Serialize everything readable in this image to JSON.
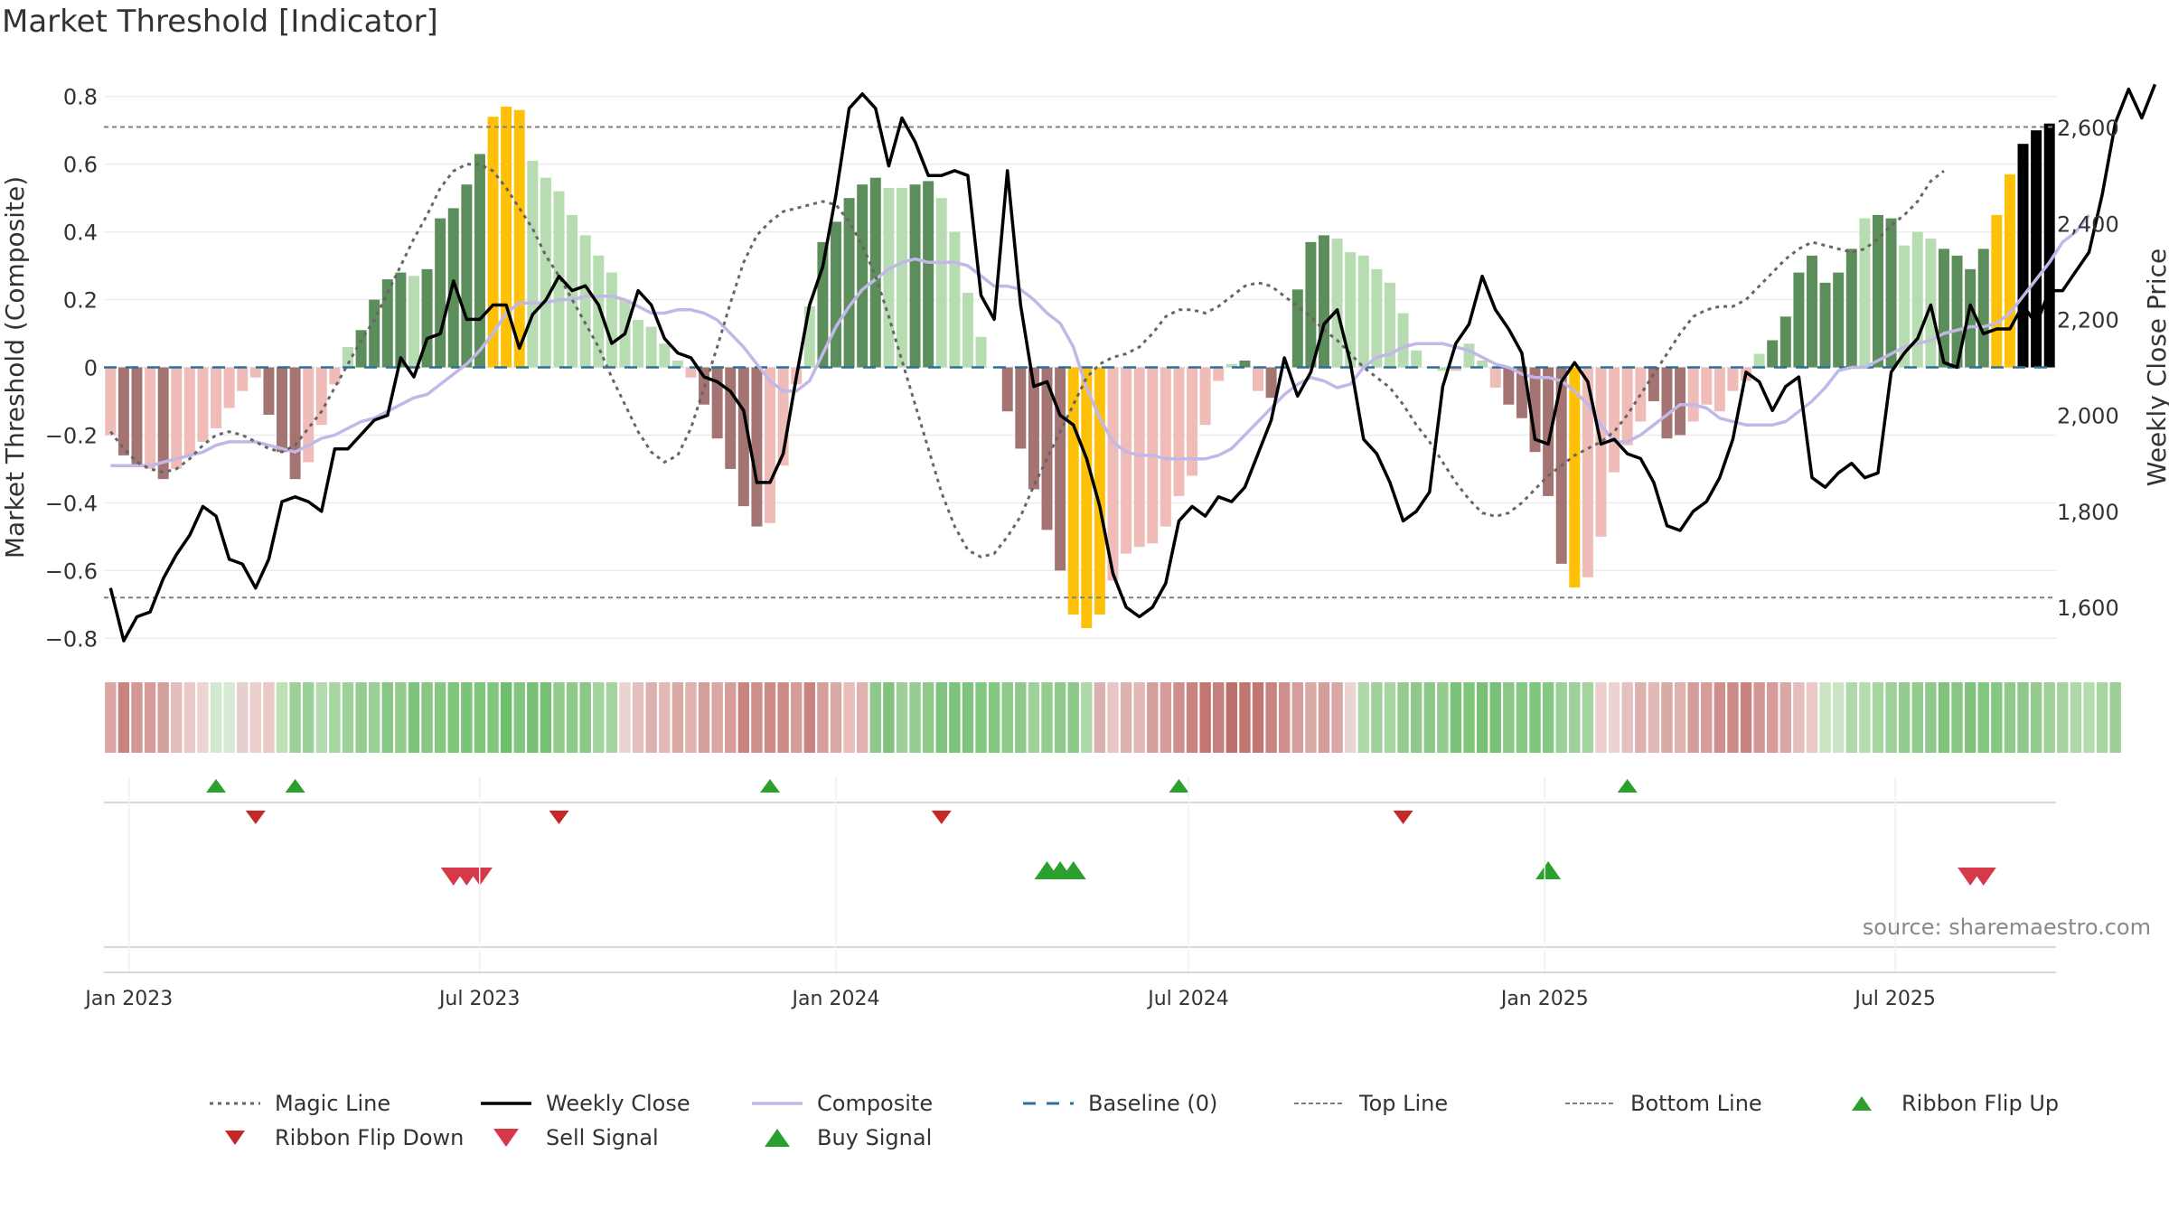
{
  "title": "Market Threshold [Indicator]",
  "source": "source: sharemaestro.com",
  "chart_data": {
    "type": "bar",
    "ylabel_left": "Market Threshold (Composite)",
    "ylabel_right": "Weekly Close Price",
    "ylim_left": [
      -0.85,
      0.85
    ],
    "yticks_left": [
      "0.8",
      "0.6",
      "0.4",
      "0.2",
      "0",
      "−0.2",
      "−0.4",
      "−0.6",
      "−0.8"
    ],
    "ylim_right": [
      1500,
      2700
    ],
    "yticks_right": [
      "2,600",
      "2,400",
      "2,200",
      "2,000",
      "1,800",
      "1,600"
    ],
    "x_start": "2022-12-19",
    "x_end": "2025-09-22",
    "xticks": [
      "Jan 2023",
      "Jul 2023",
      "Jan 2024",
      "Jul 2024",
      "Jan 2025",
      "Jul 2025"
    ],
    "top_line": 0.71,
    "bottom_line": -0.68,
    "baseline": 0,
    "composite": [
      -0.2,
      -0.26,
      -0.29,
      -0.3,
      -0.33,
      -0.3,
      -0.26,
      -0.22,
      -0.18,
      -0.12,
      -0.07,
      -0.03,
      -0.14,
      -0.25,
      -0.33,
      -0.28,
      -0.17,
      -0.05,
      0.06,
      0.11,
      0.2,
      0.26,
      0.28,
      0.27,
      0.29,
      0.44,
      0.47,
      0.54,
      0.63,
      0.74,
      0.77,
      0.76,
      0.61,
      0.56,
      0.52,
      0.45,
      0.39,
      0.33,
      0.28,
      0.2,
      0.14,
      0.12,
      0.07,
      0.02,
      -0.03,
      -0.11,
      -0.21,
      -0.3,
      -0.41,
      -0.47,
      -0.46,
      -0.29,
      -0.05,
      0.18,
      0.37,
      0.43,
      0.5,
      0.54,
      0.56,
      0.53,
      0.53,
      0.54,
      0.55,
      0.5,
      0.4,
      0.22,
      0.09,
      0.0,
      -0.13,
      -0.24,
      -0.36,
      -0.48,
      -0.6,
      -0.73,
      -0.77,
      -0.73,
      -0.63,
      -0.55,
      -0.53,
      -0.52,
      -0.47,
      -0.38,
      -0.32,
      -0.17,
      -0.04,
      0.01,
      0.02,
      -0.07,
      -0.09,
      0.0,
      0.23,
      0.37,
      0.39,
      0.38,
      0.34,
      0.33,
      0.29,
      0.25,
      0.16,
      0.05,
      0.0,
      -0.01,
      -0.01,
      0.07,
      0.02,
      -0.06,
      -0.11,
      -0.15,
      -0.25,
      -0.38,
      -0.58,
      -0.65,
      -0.62,
      -0.5,
      -0.31,
      -0.23,
      -0.16,
      -0.1,
      -0.21,
      -0.2,
      -0.16,
      -0.11,
      -0.13,
      -0.07,
      -0.04,
      0.04,
      0.08,
      0.15,
      0.28,
      0.33,
      0.25,
      0.28,
      0.35,
      0.44,
      0.45,
      0.44,
      0.36,
      0.4,
      0.38,
      0.35,
      0.33,
      0.29,
      0.35,
      0.45,
      0.57,
      0.66,
      0.7,
      0.72
    ],
    "bar_colors": [
      "#efbcb8",
      "#a37471",
      "#a37471",
      "#efbcb8",
      "#a37471",
      "#efbcb8",
      "#efbcb8",
      "#efbcb8",
      "#efbcb8",
      "#efbcb8",
      "#efbcb8",
      "#efbcb8",
      "#a37471",
      "#a37471",
      "#a37471",
      "#efbcb8",
      "#efbcb8",
      "#efbcb8",
      "#b7dcb1",
      "#5c8e5c",
      "#5c8e5c",
      "#5c8e5c",
      "#5c8e5c",
      "#b7dcb1",
      "#5c8e5c",
      "#5c8e5c",
      "#5c8e5c",
      "#5c8e5c",
      "#5c8e5c",
      "#ffc107",
      "#ffc107",
      "#ffc107",
      "#b7dcb1",
      "#b7dcb1",
      "#b7dcb1",
      "#b7dcb1",
      "#b7dcb1",
      "#b7dcb1",
      "#b7dcb1",
      "#b7dcb1",
      "#b7dcb1",
      "#b7dcb1",
      "#b7dcb1",
      "#b7dcb1",
      "#efbcb8",
      "#a37471",
      "#a37471",
      "#a37471",
      "#a37471",
      "#a37471",
      "#efbcb8",
      "#efbcb8",
      "#efbcb8",
      "#b7dcb1",
      "#5c8e5c",
      "#5c8e5c",
      "#5c8e5c",
      "#5c8e5c",
      "#5c8e5c",
      "#b7dcb1",
      "#b7dcb1",
      "#5c8e5c",
      "#5c8e5c",
      "#b7dcb1",
      "#b7dcb1",
      "#b7dcb1",
      "#b7dcb1",
      "#b7dcb1",
      "#a37471",
      "#a37471",
      "#a37471",
      "#a37471",
      "#a37471",
      "#ffc107",
      "#ffc107",
      "#ffc107",
      "#efbcb8",
      "#efbcb8",
      "#efbcb8",
      "#efbcb8",
      "#efbcb8",
      "#efbcb8",
      "#efbcb8",
      "#efbcb8",
      "#efbcb8",
      "#b7dcb1",
      "#5c8e5c",
      "#efbcb8",
      "#a37471",
      "#b7dcb1",
      "#5c8e5c",
      "#5c8e5c",
      "#5c8e5c",
      "#b7dcb1",
      "#b7dcb1",
      "#b7dcb1",
      "#b7dcb1",
      "#b7dcb1",
      "#b7dcb1",
      "#b7dcb1",
      "#b7dcb1",
      "#b7dcb1",
      "#efbcb8",
      "#b7dcb1",
      "#b7dcb1",
      "#efbcb8",
      "#a37471",
      "#a37471",
      "#a37471",
      "#a37471",
      "#a37471",
      "#ffc107",
      "#efbcb8",
      "#efbcb8",
      "#efbcb8",
      "#efbcb8",
      "#efbcb8",
      "#a37471",
      "#a37471",
      "#a37471",
      "#efbcb8",
      "#efbcb8",
      "#efbcb8",
      "#efbcb8",
      "#efbcb8",
      "#b7dcb1",
      "#5c8e5c",
      "#5c8e5c",
      "#5c8e5c",
      "#5c8e5c",
      "#5c8e5c",
      "#5c8e5c",
      "#5c8e5c",
      "#b7dcb1",
      "#5c8e5c",
      "#5c8e5c",
      "#b7dcb1",
      "#b7dcb1",
      "#b7dcb1",
      "#5c8e5c",
      "#5c8e5c",
      "#5c8e5c",
      "#5c8e5c",
      "#ffc107",
      "#ffc107"
    ],
    "composite_line": [
      -0.29,
      -0.29,
      -0.29,
      -0.29,
      -0.28,
      -0.27,
      -0.26,
      -0.25,
      -0.23,
      -0.22,
      -0.22,
      -0.22,
      -0.23,
      -0.24,
      -0.25,
      -0.23,
      -0.21,
      -0.2,
      -0.18,
      -0.16,
      -0.15,
      -0.13,
      -0.11,
      -0.09,
      -0.08,
      -0.05,
      -0.02,
      0.01,
      0.05,
      0.1,
      0.16,
      0.19,
      0.19,
      0.19,
      0.2,
      0.2,
      0.21,
      0.21,
      0.21,
      0.2,
      0.18,
      0.16,
      0.16,
      0.17,
      0.17,
      0.16,
      0.14,
      0.1,
      0.06,
      0.01,
      -0.04,
      -0.07,
      -0.07,
      -0.04,
      0.04,
      0.12,
      0.18,
      0.23,
      0.26,
      0.29,
      0.31,
      0.32,
      0.31,
      0.31,
      0.31,
      0.3,
      0.27,
      0.24,
      0.24,
      0.23,
      0.2,
      0.16,
      0.13,
      0.06,
      -0.06,
      -0.15,
      -0.22,
      -0.25,
      -0.26,
      -0.26,
      -0.27,
      -0.27,
      -0.27,
      -0.27,
      -0.26,
      -0.24,
      -0.2,
      -0.16,
      -0.12,
      -0.08,
      -0.05,
      -0.03,
      -0.04,
      -0.06,
      -0.05,
      0.0,
      0.03,
      0.04,
      0.06,
      0.07,
      0.07,
      0.07,
      0.06,
      0.05,
      0.03,
      0.01,
      0.0,
      -0.02,
      -0.03,
      -0.03,
      -0.04,
      -0.07,
      -0.11,
      -0.17,
      -0.22,
      -0.22,
      -0.2,
      -0.17,
      -0.14,
      -0.11,
      -0.11,
      -0.12,
      -0.15,
      -0.16,
      -0.17,
      -0.17,
      -0.17,
      -0.16,
      -0.13,
      -0.1,
      -0.06,
      -0.01,
      0.0,
      0.0,
      0.02,
      0.04,
      0.06,
      0.07,
      0.08,
      0.1,
      0.11,
      0.12,
      0.12,
      0.13,
      0.16,
      0.21,
      0.26,
      0.31,
      0.37,
      0.4,
      0.45
    ],
    "magic_line": [
      -0.19,
      -0.24,
      -0.28,
      -0.3,
      -0.31,
      -0.3,
      -0.27,
      -0.23,
      -0.2,
      -0.19,
      -0.2,
      -0.22,
      -0.24,
      -0.25,
      -0.23,
      -0.18,
      -0.13,
      -0.06,
      0.01,
      0.08,
      0.14,
      0.22,
      0.3,
      0.38,
      0.45,
      0.53,
      0.58,
      0.6,
      0.6,
      0.58,
      0.53,
      0.47,
      0.41,
      0.33,
      0.27,
      0.2,
      0.13,
      0.06,
      -0.03,
      -0.11,
      -0.19,
      -0.25,
      -0.28,
      -0.26,
      -0.18,
      -0.06,
      0.06,
      0.19,
      0.31,
      0.39,
      0.43,
      0.46,
      0.47,
      0.48,
      0.49,
      0.48,
      0.43,
      0.36,
      0.27,
      0.15,
      0.02,
      -0.11,
      -0.24,
      -0.37,
      -0.47,
      -0.54,
      -0.56,
      -0.55,
      -0.5,
      -0.44,
      -0.35,
      -0.27,
      -0.19,
      -0.11,
      -0.03,
      0.01,
      0.03,
      0.04,
      0.06,
      0.1,
      0.15,
      0.17,
      0.17,
      0.16,
      0.18,
      0.21,
      0.24,
      0.25,
      0.24,
      0.21,
      0.18,
      0.15,
      0.11,
      0.08,
      0.04,
      0.0,
      -0.03,
      -0.06,
      -0.11,
      -0.17,
      -0.22,
      -0.28,
      -0.34,
      -0.39,
      -0.43,
      -0.44,
      -0.43,
      -0.4,
      -0.36,
      -0.32,
      -0.29,
      -0.26,
      -0.24,
      -0.22,
      -0.19,
      -0.14,
      -0.08,
      -0.02,
      0.04,
      0.1,
      0.15,
      0.17,
      0.18,
      0.18,
      0.2,
      0.24,
      0.28,
      0.32,
      0.35,
      0.37,
      0.36,
      0.35,
      0.34,
      0.35,
      0.38,
      0.42,
      0.45,
      0.49,
      0.55,
      0.58
    ],
    "weekly_close": [
      1640,
      1530,
      1580,
      1590,
      1660,
      1710,
      1750,
      1810,
      1790,
      1700,
      1690,
      1640,
      1700,
      1820,
      1830,
      1820,
      1800,
      1930,
      1930,
      1960,
      1990,
      2000,
      2120,
      2080,
      2160,
      2170,
      2280,
      2200,
      2200,
      2230,
      2230,
      2140,
      2210,
      2240,
      2290,
      2260,
      2270,
      2230,
      2150,
      2170,
      2260,
      2230,
      2160,
      2130,
      2120,
      2080,
      2070,
      2050,
      2010,
      1860,
      1860,
      1920,
      2080,
      2230,
      2310,
      2460,
      2640,
      2670,
      2640,
      2520,
      2620,
      2570,
      2500,
      2500,
      2510,
      2500,
      2250,
      2200,
      2510,
      2230,
      2060,
      2070,
      2000,
      1980,
      1910,
      1810,
      1670,
      1600,
      1580,
      1600,
      1650,
      1780,
      1810,
      1790,
      1830,
      1820,
      1850,
      1920,
      1990,
      2120,
      2040,
      2090,
      2190,
      2220,
      2110,
      1950,
      1920,
      1860,
      1780,
      1800,
      1840,
      2060,
      2150,
      2190,
      2290,
      2220,
      2180,
      2130,
      1950,
      1940,
      2070,
      2110,
      2070,
      1940,
      1950,
      1920,
      1910,
      1860,
      1770,
      1760,
      1800,
      1820,
      1870,
      1950,
      2090,
      2070,
      2010,
      2060,
      2080,
      1870,
      1850,
      1880,
      1900,
      1870,
      1880,
      2090,
      2130,
      2160,
      2230,
      2110,
      2100,
      2230,
      2170,
      2180,
      2180,
      2230,
      2190,
      2260,
      2260,
      2300,
      2340,
      2460,
      2610,
      2680,
      2620,
      2690
    ]
  },
  "ribbon_colors": [
    "#dba7a4",
    "#c98380",
    "#d39795",
    "#d69c99",
    "#d4a09d",
    "#e3bebc",
    "#e9c8c6",
    "#ebd4d2",
    "#d3e8d0",
    "#d6ead2",
    "#e6d0cf",
    "#eccfcd",
    "#e9c8c6",
    "#bde2b6",
    "#9fd09a",
    "#9ad196",
    "#b4dcae",
    "#a6d5a0",
    "#9ed19a",
    "#94cc8f",
    "#9ad196",
    "#86c783",
    "#93cb8d",
    "#7fc27b",
    "#88c683",
    "#86c782",
    "#7ec67b",
    "#7cc37a",
    "#7ec67a",
    "#82c57f",
    "#6fbe6c",
    "#81c57e",
    "#78c075",
    "#79c077",
    "#93cc8d",
    "#90ca8a",
    "#8bc887",
    "#a4d49d",
    "#a6d3a0",
    "#ead3d0",
    "#e4c1bf",
    "#dcb1ae",
    "#e2b9b6",
    "#d9a9a6",
    "#dfb2af",
    "#d39e9b",
    "#dba7a4",
    "#d69c99",
    "#c98380",
    "#cf8f8c",
    "#cd8b88",
    "#cd8b88",
    "#d69c99",
    "#c98380",
    "#d39e9b",
    "#d9a9a6",
    "#e9bebb",
    "#dfb2af",
    "#8ec88a",
    "#82c27f",
    "#9ecf98",
    "#97cd92",
    "#8ec98a",
    "#82c27f",
    "#7dc47a",
    "#82c27f",
    "#82c67f",
    "#84c781",
    "#8ecb8a",
    "#8ec88a",
    "#a1d19b",
    "#93cc8d",
    "#8ec98a",
    "#8cc988",
    "#b0d9aa",
    "#dab1ae",
    "#e7c7c5",
    "#dcb1ae",
    "#e2b9b6",
    "#d39e9b",
    "#d69c99",
    "#cf8f8c",
    "#c98380",
    "#c27672",
    "#c6807d",
    "#bd6f6b",
    "#c27672",
    "#c27672",
    "#c98380",
    "#cf8f8c",
    "#d39e9b",
    "#d9a9a6",
    "#d39e9b",
    "#dba7a4",
    "#ead3d0",
    "#b0d9aa",
    "#a1d19b",
    "#a6d5a0",
    "#93cc8d",
    "#8ec98a",
    "#8cc988",
    "#94cc8f",
    "#7cc37a",
    "#7ec67a",
    "#79c077",
    "#78c075",
    "#8bc887",
    "#86c783",
    "#7ec67b",
    "#86c782",
    "#9ad196",
    "#9ed19a",
    "#a4d49d",
    "#eccfcd",
    "#ead3d0",
    "#e4c1bf",
    "#dcb1ae",
    "#e2b9b6",
    "#d9a9a6",
    "#dfb2af",
    "#d39e9b",
    "#d69c99",
    "#cf8f8c",
    "#cd8b88",
    "#c98380",
    "#d39795",
    "#d69c99",
    "#dba7a4",
    "#e3bebc",
    "#e9c8c6",
    "#c9e5c3",
    "#c9e5c3",
    "#b0d9aa",
    "#b4dcae",
    "#a6d5a0",
    "#9ed19a",
    "#94cc8f",
    "#93cb8d",
    "#8ec88a",
    "#7fc27b",
    "#88c683",
    "#82c27f",
    "#82c67f",
    "#84c781",
    "#8ecb8a",
    "#8ec98a",
    "#93cc8d",
    "#a1d19b",
    "#a6d3a0",
    "#b0d9aa",
    "#b4dcae",
    "#a6d5a0",
    "#9ecf98"
  ],
  "signals": {
    "ribbon_flip_up": [
      8,
      14,
      50,
      81,
      115
    ],
    "ribbon_flip_down": [
      11,
      34,
      63,
      98
    ],
    "buy_signal": [
      71,
      72,
      73,
      109
    ],
    "sell_signal": [
      26,
      27,
      28,
      141,
      142
    ]
  },
  "legend": {
    "magic_line": "Magic Line",
    "weekly_close": "Weekly Close",
    "composite": "Composite",
    "baseline": "Baseline (0)",
    "top_line": "Top Line",
    "bottom_line": "Bottom Line",
    "ribbon_flip_up": "Ribbon Flip Up",
    "ribbon_flip_down": "Ribbon Flip Down",
    "sell_signal": "Sell Signal",
    "buy_signal": "Buy Signal"
  },
  "colors": {
    "magic_line": "#666666",
    "weekly_close": "#000000",
    "composite_line": "#c2b8e8",
    "baseline": "#2c6f9a",
    "top_bottom_line": "#808080",
    "flip_up": "#2ca02c",
    "flip_down": "#c62828",
    "buy": "#2ca02c",
    "sell": "#d63a4a"
  }
}
